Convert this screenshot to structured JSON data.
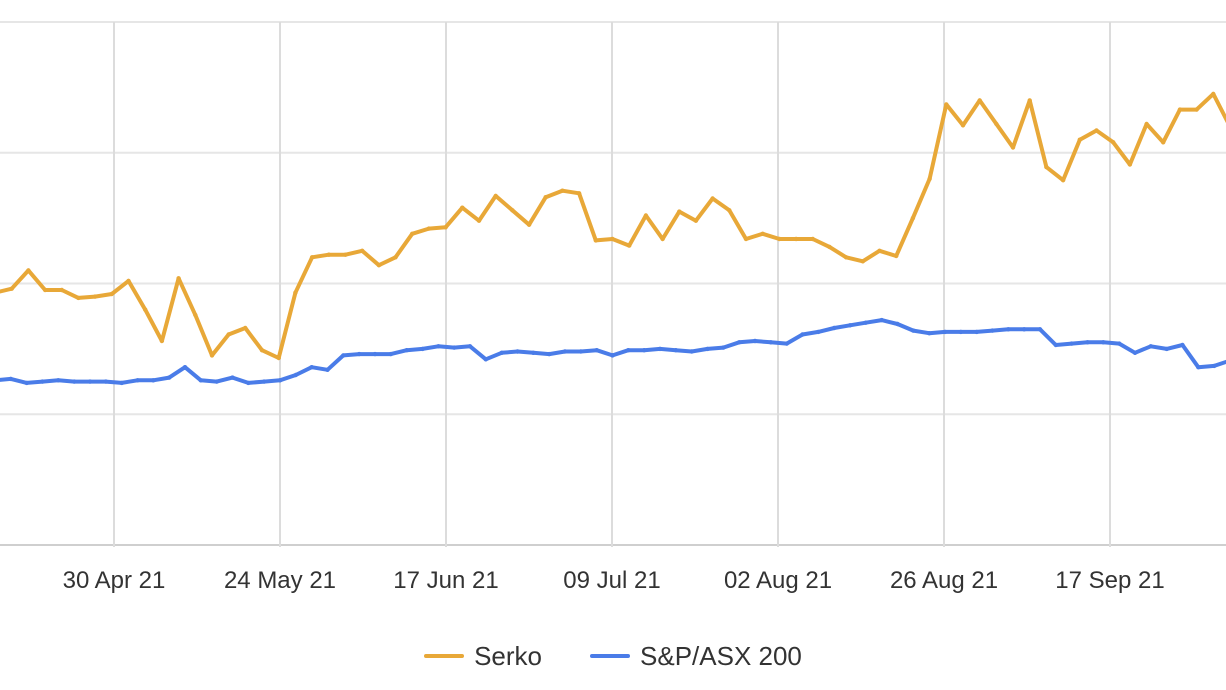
{
  "chart_data": {
    "type": "line",
    "title": "",
    "xlabel": "",
    "ylabel": "",
    "grid": true,
    "legend_position": "bottom-center",
    "x_tick_labels": [
      "30 Apr 21",
      "24 May 21",
      "17 Jun 21",
      "09 Jul 21",
      "02 Aug 21",
      "26 Aug 21",
      "17 Sep 21"
    ],
    "ylim": [
      0,
      4
    ],
    "series": [
      {
        "name": "Serko",
        "color": "#E8A838",
        "values": [
          1.93,
          1.96,
          2.1,
          1.95,
          1.95,
          1.89,
          1.9,
          1.92,
          2.02,
          1.8,
          1.56,
          2.04,
          1.76,
          1.45,
          1.61,
          1.66,
          1.49,
          1.43,
          1.93,
          2.2,
          2.22,
          2.22,
          2.25,
          2.14,
          2.2,
          2.38,
          2.42,
          2.43,
          2.58,
          2.48,
          2.67,
          2.56,
          2.45,
          2.66,
          2.71,
          2.69,
          2.33,
          2.34,
          2.29,
          2.52,
          2.34,
          2.55,
          2.48,
          2.65,
          2.56,
          2.34,
          2.38,
          2.34,
          2.34,
          2.34,
          2.28,
          2.2,
          2.17,
          2.25,
          2.21,
          2.5,
          2.8,
          3.37,
          3.21,
          3.4,
          3.22,
          3.04,
          3.4,
          2.89,
          2.79,
          3.1,
          3.17,
          3.08,
          2.91,
          3.22,
          3.08,
          3.33,
          3.33,
          3.45,
          3.2
        ]
      },
      {
        "name": "S&P/ASX 200",
        "color": "#4A7CE8",
        "values": [
          1.26,
          1.27,
          1.24,
          1.25,
          1.26,
          1.25,
          1.25,
          1.25,
          1.24,
          1.26,
          1.26,
          1.28,
          1.36,
          1.26,
          1.25,
          1.28,
          1.24,
          1.25,
          1.26,
          1.3,
          1.36,
          1.34,
          1.45,
          1.46,
          1.46,
          1.46,
          1.49,
          1.5,
          1.52,
          1.51,
          1.52,
          1.42,
          1.47,
          1.48,
          1.47,
          1.46,
          1.48,
          1.48,
          1.49,
          1.45,
          1.49,
          1.49,
          1.5,
          1.49,
          1.48,
          1.5,
          1.51,
          1.55,
          1.56,
          1.55,
          1.54,
          1.61,
          1.63,
          1.66,
          1.68,
          1.7,
          1.72,
          1.69,
          1.64,
          1.62,
          1.63,
          1.63,
          1.63,
          1.64,
          1.65,
          1.65,
          1.65,
          1.53,
          1.54,
          1.55,
          1.55,
          1.54,
          1.47,
          1.52,
          1.5,
          1.53,
          1.36,
          1.37,
          1.41
        ]
      }
    ]
  },
  "legend": {
    "items": [
      {
        "label": "Serko",
        "color": "#E8A838"
      },
      {
        "label": "S&P/ASX 200",
        "color": "#4A7CE8"
      }
    ]
  }
}
